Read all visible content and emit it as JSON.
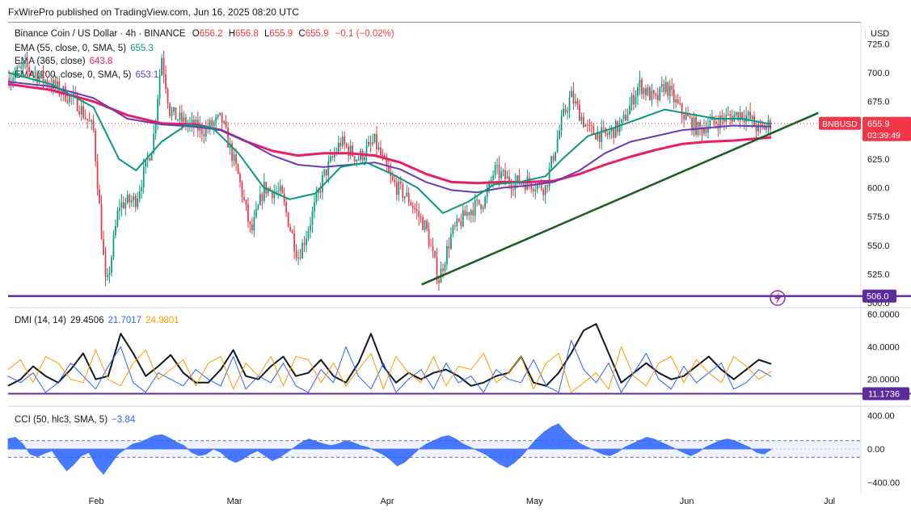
{
  "header": {
    "publisher": "FxWirePro published on TradingView.com, Jun 16, 2025 08:20 UTC"
  },
  "price_axis_currency": "USD",
  "main_legend": {
    "symbol": "Binance Coin / US Dollar · 4h · BINANCE",
    "o_label": "O",
    "o": "656.2",
    "h_label": "H",
    "h": "656.8",
    "l_label": "L",
    "l": "655.9",
    "c_label": "C",
    "c": "655.9",
    "change": "−0.1 (−0.02%)",
    "ema55": {
      "label": "EMA (55, close, 0, SMA, 5)",
      "value": "655.3",
      "color": "#089981"
    },
    "ema365": {
      "label": "EMA (365, close)",
      "value": "643.8",
      "color": "#e91e63"
    },
    "ema200": {
      "label": "EMA (200, close, 0, SMA, 5)",
      "value": "653.1",
      "color": "#673ab7"
    }
  },
  "ticker_badge": {
    "name": "BNBUSD",
    "price": "655.9",
    "timer": "03:39:49"
  },
  "support_badge": "506.0",
  "dmi_legend": {
    "label": "DMI (14, 14)",
    "adx": "29.4506",
    "plus_di": "21.7017",
    "minus_di": "24.9801"
  },
  "dmi_badge": "11.1736",
  "cci_legend": {
    "label": "CCI (50, hlc3, SMA, 5)",
    "value": "−3.84"
  },
  "colors": {
    "up": "#089981",
    "down": "#f23645",
    "trendline": "#1b5e20",
    "support": "#5b2c9e",
    "cci": "#2962ff",
    "dmi_plus": "#2962ff",
    "dmi_minus": "#ff9800",
    "adx": "#131722"
  },
  "chart_data": [
    {
      "type": "candlestick",
      "y_ticks": [
        "725.0",
        "700.0",
        "675.0",
        "650.0",
        "625.0",
        "600.0",
        "575.0",
        "550.0",
        "525.0",
        "500.0"
      ],
      "ylim": [
        498,
        735
      ],
      "x_ticks": [
        {
          "label": "Feb",
          "t": 0.103
        },
        {
          "label": "Mar",
          "t": 0.265
        },
        {
          "label": "Apr",
          "t": 0.445
        },
        {
          "label": "May",
          "t": 0.616
        },
        {
          "label": "Jun",
          "t": 0.796
        },
        {
          "label": "Jul",
          "t": 0.965
        }
      ],
      "anchors": [
        [
          0.0,
          695
        ],
        [
          0.02,
          705
        ],
        [
          0.05,
          690
        ],
        [
          0.08,
          675
        ],
        [
          0.1,
          650
        ],
        [
          0.115,
          510
        ],
        [
          0.13,
          585
        ],
        [
          0.15,
          590
        ],
        [
          0.17,
          640
        ],
        [
          0.18,
          715
        ],
        [
          0.19,
          665
        ],
        [
          0.21,
          655
        ],
        [
          0.23,
          650
        ],
        [
          0.25,
          660
        ],
        [
          0.27,
          610
        ],
        [
          0.285,
          560
        ],
        [
          0.3,
          600
        ],
        [
          0.32,
          595
        ],
        [
          0.34,
          540
        ],
        [
          0.35,
          560
        ],
        [
          0.37,
          610
        ],
        [
          0.39,
          640
        ],
        [
          0.41,
          625
        ],
        [
          0.43,
          640
        ],
        [
          0.45,
          605
        ],
        [
          0.47,
          590
        ],
        [
          0.49,
          565
        ],
        [
          0.505,
          520
        ],
        [
          0.52,
          560
        ],
        [
          0.54,
          580
        ],
        [
          0.56,
          590
        ],
        [
          0.57,
          615
        ],
        [
          0.59,
          605
        ],
        [
          0.61,
          605
        ],
        [
          0.63,
          600
        ],
        [
          0.65,
          660
        ],
        [
          0.66,
          680
        ],
        [
          0.68,
          650
        ],
        [
          0.7,
          645
        ],
        [
          0.72,
          655
        ],
        [
          0.74,
          690
        ],
        [
          0.76,
          675
        ],
        [
          0.77,
          690
        ],
        [
          0.79,
          665
        ],
        [
          0.81,
          650
        ],
        [
          0.82,
          655
        ],
        [
          0.84,
          660
        ],
        [
          0.86,
          665
        ],
        [
          0.87,
          660
        ],
        [
          0.88,
          650
        ],
        [
          0.895,
          655.9
        ]
      ],
      "ema55": [
        [
          0.0,
          700
        ],
        [
          0.05,
          690
        ],
        [
          0.1,
          670
        ],
        [
          0.13,
          625
        ],
        [
          0.15,
          615
        ],
        [
          0.18,
          640
        ],
        [
          0.21,
          655
        ],
        [
          0.24,
          652
        ],
        [
          0.27,
          630
        ],
        [
          0.3,
          600
        ],
        [
          0.33,
          590
        ],
        [
          0.36,
          595
        ],
        [
          0.39,
          618
        ],
        [
          0.42,
          622
        ],
        [
          0.45,
          612
        ],
        [
          0.48,
          600
        ],
        [
          0.51,
          578
        ],
        [
          0.54,
          588
        ],
        [
          0.57,
          603
        ],
        [
          0.6,
          605
        ],
        [
          0.63,
          610
        ],
        [
          0.65,
          625
        ],
        [
          0.68,
          645
        ],
        [
          0.71,
          652
        ],
        [
          0.74,
          660
        ],
        [
          0.77,
          668
        ],
        [
          0.8,
          664
        ],
        [
          0.83,
          660
        ],
        [
          0.86,
          660
        ],
        [
          0.895,
          655.3
        ]
      ],
      "ema200": [
        [
          0.0,
          692
        ],
        [
          0.05,
          688
        ],
        [
          0.1,
          678
        ],
        [
          0.14,
          660
        ],
        [
          0.18,
          655
        ],
        [
          0.22,
          653
        ],
        [
          0.25,
          650
        ],
        [
          0.28,
          640
        ],
        [
          0.31,
          628
        ],
        [
          0.34,
          620
        ],
        [
          0.37,
          618
        ],
        [
          0.4,
          620
        ],
        [
          0.43,
          622
        ],
        [
          0.46,
          616
        ],
        [
          0.49,
          605
        ],
        [
          0.52,
          598
        ],
        [
          0.55,
          596
        ],
        [
          0.58,
          600
        ],
        [
          0.61,
          602
        ],
        [
          0.64,
          605
        ],
        [
          0.67,
          615
        ],
        [
          0.7,
          630
        ],
        [
          0.73,
          640
        ],
        [
          0.76,
          645
        ],
        [
          0.79,
          650
        ],
        [
          0.82,
          652
        ],
        [
          0.85,
          654
        ],
        [
          0.895,
          653.1
        ]
      ],
      "ema365": [
        [
          0.0,
          690
        ],
        [
          0.05,
          685
        ],
        [
          0.1,
          675
        ],
        [
          0.14,
          663
        ],
        [
          0.18,
          656
        ],
        [
          0.22,
          655
        ],
        [
          0.25,
          650
        ],
        [
          0.28,
          640
        ],
        [
          0.31,
          632
        ],
        [
          0.34,
          628
        ],
        [
          0.37,
          630
        ],
        [
          0.4,
          630
        ],
        [
          0.43,
          628
        ],
        [
          0.46,
          622
        ],
        [
          0.49,
          612
        ],
        [
          0.52,
          605
        ],
        [
          0.55,
          604
        ],
        [
          0.58,
          605
        ],
        [
          0.61,
          605
        ],
        [
          0.64,
          606
        ],
        [
          0.67,
          612
        ],
        [
          0.7,
          620
        ],
        [
          0.73,
          627
        ],
        [
          0.76,
          633
        ],
        [
          0.79,
          638
        ],
        [
          0.82,
          640
        ],
        [
          0.85,
          641
        ],
        [
          0.895,
          643.8
        ]
      ],
      "trendline": [
        [
          0.485,
          516
        ],
        [
          0.95,
          665
        ]
      ],
      "support_level": 506.0,
      "last_price": 655.9
    },
    {
      "type": "line",
      "name": "DMI",
      "y_ticks": [
        "60.0000",
        "40.0000",
        "20.0000"
      ],
      "ylim": [
        5,
        62
      ],
      "series": [
        {
          "name": "ADX",
          "values": [
            16,
            20,
            28,
            22,
            18,
            26,
            36,
            20,
            22,
            48,
            36,
            22,
            28,
            35,
            24,
            18,
            18,
            26,
            38,
            22,
            20,
            28,
            34,
            22,
            24,
            32,
            22,
            18,
            30,
            48,
            28,
            18,
            24,
            20,
            24,
            26,
            22,
            16,
            18,
            22,
            24,
            34,
            18,
            16,
            24,
            36,
            50,
            54,
            36,
            18,
            24,
            30,
            24,
            20,
            22,
            28,
            34,
            26,
            20,
            26,
            32,
            29.45
          ]
        },
        {
          "name": "+DI",
          "values": [
            22,
            18,
            24,
            12,
            18,
            30,
            22,
            14,
            28,
            40,
            18,
            12,
            24,
            20,
            16,
            26,
            20,
            16,
            34,
            14,
            22,
            18,
            30,
            16,
            12,
            26,
            18,
            40,
            22,
            14,
            30,
            12,
            20,
            26,
            14,
            30,
            18,
            22,
            12,
            26,
            20,
            18,
            32,
            16,
            12,
            44,
            26,
            18,
            30,
            12,
            24,
            36,
            20,
            14,
            28,
            18,
            24,
            30,
            14,
            18,
            26,
            21.7
          ]
        },
        {
          "name": "−DI",
          "values": [
            26,
            32,
            18,
            34,
            30,
            20,
            18,
            38,
            20,
            16,
            30,
            38,
            20,
            26,
            32,
            16,
            30,
            34,
            14,
            30,
            22,
            34,
            16,
            34,
            32,
            18,
            30,
            16,
            26,
            36,
            14,
            34,
            24,
            18,
            34,
            16,
            28,
            26,
            36,
            18,
            24,
            34,
            14,
            30,
            36,
            12,
            18,
            24,
            14,
            40,
            22,
            16,
            30,
            34,
            18,
            32,
            24,
            18,
            34,
            28,
            20,
            24.98
          ]
        }
      ],
      "reference_level": 11.1736
    },
    {
      "type": "area",
      "name": "CCI",
      "y_ticks": [
        "400.00",
        "0.00",
        "−400.00"
      ],
      "ylim": [
        -470,
        470
      ],
      "values": [
        120,
        140,
        60,
        -60,
        -90,
        -50,
        -20,
        -150,
        -260,
        -180,
        -80,
        -40,
        -200,
        -300,
        -180,
        -60,
        0,
        60,
        80,
        120,
        160,
        170,
        130,
        80,
        40,
        -40,
        -80,
        -60,
        0,
        -40,
        -120,
        -160,
        -120,
        -60,
        -20,
        -80,
        -140,
        -100,
        -40,
        20,
        80,
        120,
        90,
        60,
        40,
        60,
        100,
        80,
        40,
        20,
        -20,
        -60,
        -120,
        -200,
        -160,
        -80,
        0,
        60,
        100,
        140,
        160,
        120,
        60,
        20,
        -20,
        -60,
        -120,
        -180,
        -220,
        -160,
        -80,
        20,
        120,
        200,
        260,
        300,
        200,
        120,
        60,
        20,
        -20,
        -60,
        -80,
        -40,
        20,
        60,
        100,
        140,
        120,
        80,
        40,
        0,
        -40,
        -80,
        -40,
        20,
        60,
        100,
        120,
        100,
        60,
        20,
        -40,
        -60,
        -3.84
      ],
      "band": [
        100,
        -100
      ]
    }
  ]
}
